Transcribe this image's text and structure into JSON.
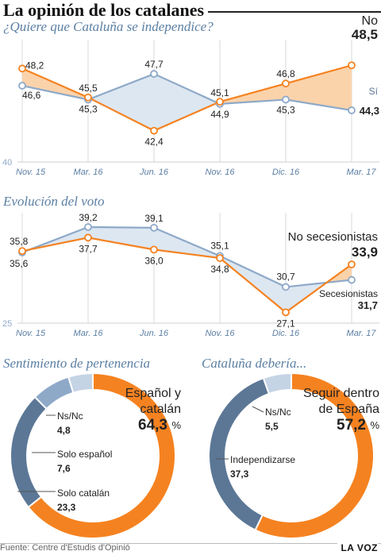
{
  "header": {
    "title": "La opinión de los catalanes",
    "subtitle_independence": "¿Quiere que Cataluña se independice?",
    "subtitle_vote": "Evolución del voto",
    "subtitle_belonging": "Sentimiento de pertenencia",
    "subtitle_should": "Cataluña debería...",
    "source": "Fuente: Centre d'Estudis d'Opinió",
    "brand": "LA VOZ"
  },
  "colors": {
    "orange": "#f58220",
    "blue": "#8ea9c8",
    "dark_blue": "#5c7796",
    "light_blue": "#c5d4e5",
    "fill_orange": "#fbd3ab",
    "fill_blue": "#dde7f1"
  },
  "chart_data": [
    {
      "type": "line",
      "title": "¿Quiere que Cataluña se independice?",
      "categories": [
        "Nov. 15",
        "Mar. 16",
        "Jun. 16",
        "Nov. 16",
        "Dic. 16",
        "Mar. 17"
      ],
      "y_axis_label": "40",
      "ylim": [
        40,
        50
      ],
      "series": [
        {
          "name": "No",
          "values": [
            48.2,
            45.5,
            42.4,
            45.1,
            46.8,
            48.5
          ],
          "labels": [
            "48,2",
            "45,5",
            "42,4",
            "45,1",
            "46,8",
            "48,5"
          ]
        },
        {
          "name": "Sí",
          "values": [
            46.6,
            45.3,
            47.7,
            44.9,
            45.3,
            44.3
          ],
          "labels": [
            "46,6",
            "45,3",
            "47,7",
            "44,9",
            "45,3",
            "44,3"
          ]
        }
      ]
    },
    {
      "type": "line",
      "title": "Evolución del voto",
      "categories": [
        "Nov. 15",
        "Mar. 16",
        "Jun. 16",
        "Nov. 16",
        "Dic. 16",
        "Mar. 17"
      ],
      "y_axis_label": "25",
      "ylim": [
        25,
        41
      ],
      "series": [
        {
          "name": "No secesionistas",
          "values": [
            35.8,
            37.7,
            36.0,
            34.8,
            27.1,
            33.9
          ],
          "labels": [
            "35,8",
            "37,7",
            "36,0",
            "34,8",
            "27,1",
            "33,9"
          ]
        },
        {
          "name": "Secesionistas",
          "values": [
            35.6,
            39.2,
            39.1,
            35.1,
            30.7,
            31.7
          ],
          "labels": [
            "35,6",
            "39,2",
            "39,1",
            "35,1",
            "30,7",
            "31,7"
          ]
        }
      ]
    },
    {
      "type": "pie",
      "title": "Sentimiento de pertenencia",
      "slices": [
        {
          "name": "Español y catalán",
          "value": 64.3,
          "label": "64,3",
          "unit": "%"
        },
        {
          "name": "Solo catalán",
          "value": 23.3,
          "label": "23,3"
        },
        {
          "name": "Solo español",
          "value": 7.6,
          "label": "7,6"
        },
        {
          "name": "Ns/Nc",
          "value": 4.8,
          "label": "4,8"
        }
      ]
    },
    {
      "type": "pie",
      "title": "Cataluña debería...",
      "slices": [
        {
          "name": "Seguir dentro de España",
          "value": 57.2,
          "label": "57,2",
          "unit": "%"
        },
        {
          "name": "Independizarse",
          "value": 37.3,
          "label": "37,3"
        },
        {
          "name": "Ns/Nc",
          "value": 5.5,
          "label": "5,5"
        }
      ]
    }
  ]
}
